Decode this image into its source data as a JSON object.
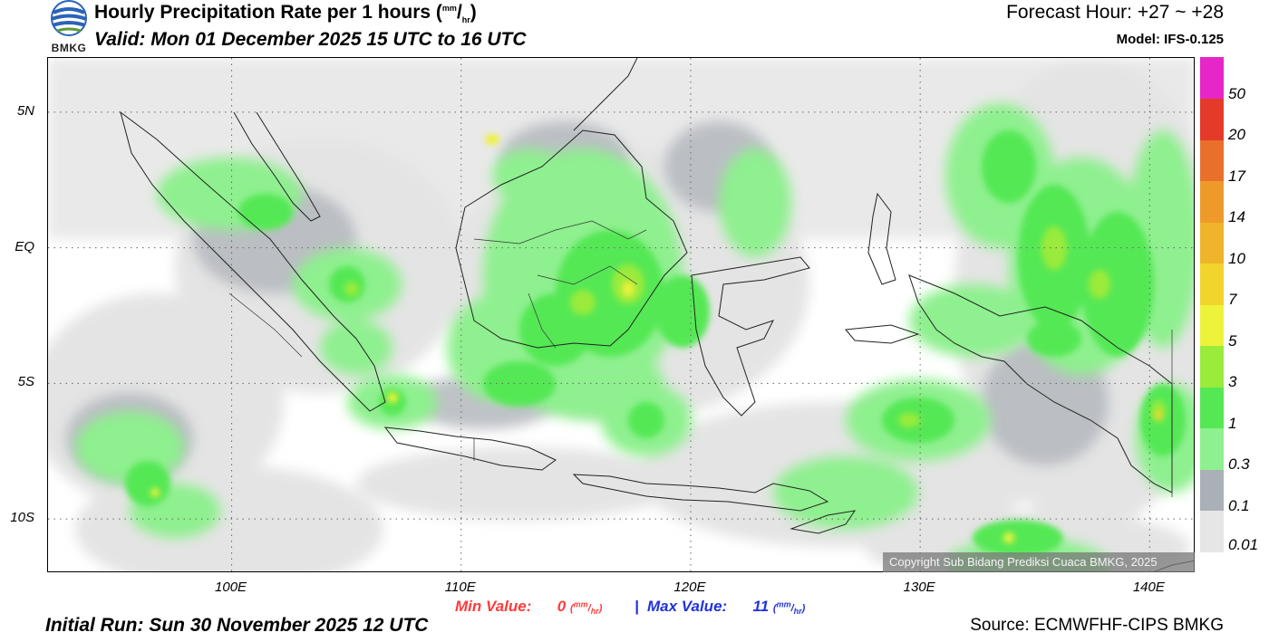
{
  "logo": {
    "text": "BMKG",
    "icon": "bmkg-logo-icon"
  },
  "header": {
    "title": "Hourly Precipitation Rate per 1 hours",
    "title_unit_num": "mm",
    "title_unit_den": "hr",
    "valid": "Valid: Mon 01 December 2025 15 UTC to 16 UTC",
    "forecast_hour": "Forecast Hour: +27 ~ +28",
    "model": "Model: IFS-0.125"
  },
  "map": {
    "lat_labels": [
      "5N",
      "EQ",
      "5S",
      "10S"
    ],
    "lon_labels": [
      "100E",
      "110E",
      "120E",
      "130E",
      "140E"
    ],
    "lat_values": [
      5,
      0,
      -5,
      -10
    ],
    "lon_values": [
      100,
      110,
      120,
      130,
      140
    ],
    "extent": {
      "lon_min": 92,
      "lon_max": 142,
      "lat_min": -12,
      "lat_max": 7
    },
    "copyright": "Copyright Sub Bidang Prediksi Cuaca BMKG, 2025"
  },
  "colorbar": {
    "labels": [
      "0.01",
      "0.1",
      "0.3",
      "1",
      "3",
      "5",
      "7",
      "10",
      "14",
      "17",
      "20",
      "50"
    ],
    "colors": [
      "#e6e6e6",
      "#aab0b8",
      "#8ef08e",
      "#55e855",
      "#9aeb3a",
      "#eef23a",
      "#f2d42a",
      "#f0b42a",
      "#ee9a2a",
      "#e8702a",
      "#e43a2a",
      "#e626c8"
    ]
  },
  "stats": {
    "min_label": "Min Value:",
    "min_value": "0",
    "separator": "|",
    "max_label": "Max Value:",
    "max_value": "11",
    "unit_num": "mm",
    "unit_den": "hr"
  },
  "footer": {
    "initial_run": "Initial Run: Sun 30 November 2025 12 UTC",
    "source": "Source: ECMWFHF-CIPS BMKG"
  }
}
